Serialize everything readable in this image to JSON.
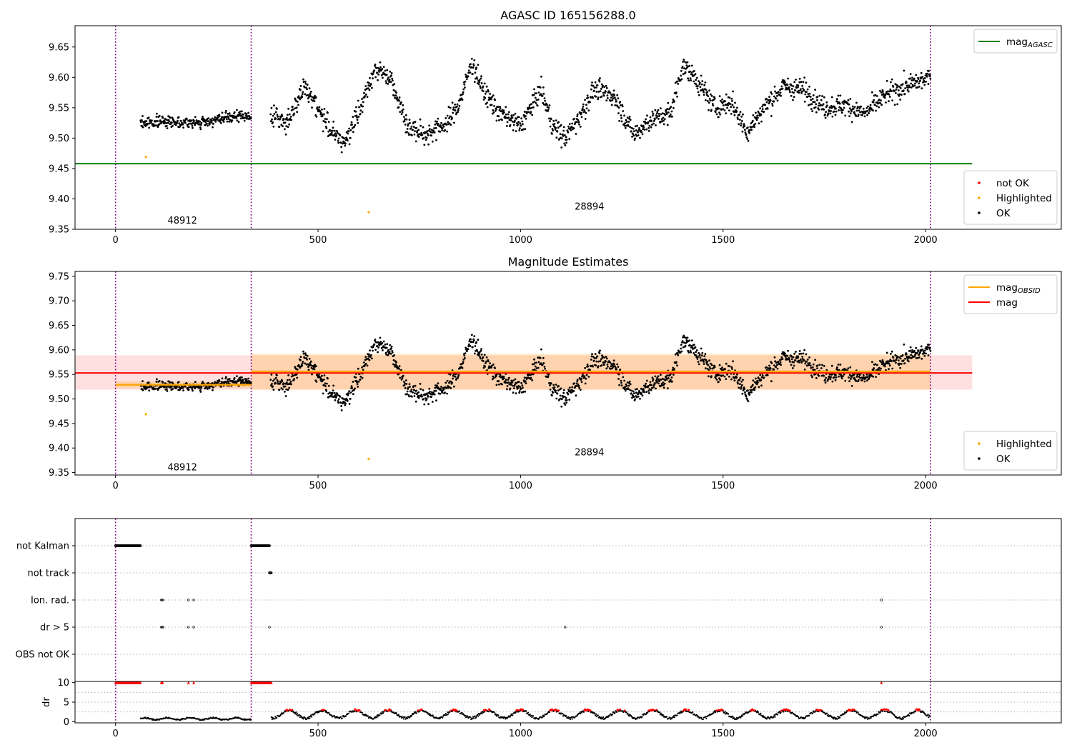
{
  "chart_data": [
    {
      "id": "top",
      "type": "scatter",
      "title": "AGASC ID 165156288.0",
      "xlim": [
        -100,
        2335
      ],
      "ylim": [
        9.35,
        9.685
      ],
      "xticks": [
        0,
        500,
        1000,
        1500,
        2000
      ],
      "yticks": [
        9.35,
        9.4,
        9.45,
        9.5,
        9.55,
        9.6,
        9.65
      ],
      "vlines": [
        0,
        335,
        2012
      ],
      "hline": {
        "name": "mag_AGASC",
        "y": 9.458,
        "x": [
          -100,
          2115
        ],
        "color": "#008000"
      },
      "highlighted": [
        {
          "x": 75,
          "y": 9.469
        },
        {
          "x": 625,
          "y": 9.378
        }
      ],
      "obsid_labels": [
        {
          "text": "48912",
          "x": 165,
          "y": 9.365
        },
        {
          "text": "28894",
          "x": 1170,
          "y": 9.388
        }
      ],
      "legends": [
        {
          "pos": "top-right",
          "entries": [
            {
              "label": "mag",
              "sub": "AGASC",
              "kind": "line",
              "color": "#008000"
            }
          ]
        },
        {
          "pos": "bottom-right",
          "entries": [
            {
              "label": "not OK",
              "kind": "dot",
              "color": "#ff0000"
            },
            {
              "label": "Highlighted",
              "kind": "dot",
              "color": "#ffa500"
            },
            {
              "label": "OK",
              "kind": "dot",
              "color": "#000000"
            }
          ]
        }
      ]
    },
    {
      "id": "mid",
      "type": "scatter",
      "title": "Magnitude Estimates",
      "xlim": [
        -100,
        2335
      ],
      "ylim": [
        9.345,
        9.76
      ],
      "xticks": [
        0,
        500,
        1000,
        1500,
        2000
      ],
      "yticks": [
        9.35,
        9.4,
        9.45,
        9.5,
        9.55,
        9.6,
        9.65,
        9.7,
        9.75
      ],
      "vlines": [
        0,
        335,
        2012
      ],
      "mag": {
        "y": 9.553,
        "band": [
          9.519,
          9.589
        ],
        "x": [
          -100,
          2115
        ],
        "color": "#ff0000"
      },
      "mag_obsid": [
        {
          "x": [
            0,
            335
          ],
          "y": 9.529,
          "band": [
            9.522,
            9.536
          ]
        },
        {
          "x": [
            335,
            2012
          ],
          "y": 9.556,
          "band": [
            9.519,
            9.592
          ]
        }
      ],
      "highlighted": [
        {
          "x": 75,
          "y": 9.469
        },
        {
          "x": 625,
          "y": 9.378
        }
      ],
      "obsid_labels": [
        {
          "text": "48912",
          "x": 165,
          "y": 9.362
        },
        {
          "text": "28894",
          "x": 1170,
          "y": 9.392
        }
      ],
      "legends": [
        {
          "pos": "top-right",
          "entries": [
            {
              "label": "mag",
              "sub": "OBSID",
              "kind": "line",
              "color": "#ffa500"
            },
            {
              "label": "mag",
              "kind": "line",
              "color": "#ff0000"
            }
          ]
        },
        {
          "pos": "bottom-right",
          "entries": [
            {
              "label": "Highlighted",
              "kind": "dot",
              "color": "#ffa500"
            },
            {
              "label": "OK",
              "kind": "dot",
              "color": "#000000"
            }
          ]
        }
      ]
    },
    {
      "id": "flags",
      "type": "scatter",
      "xlim": [
        -100,
        2335
      ],
      "categories": [
        "not Kalman",
        "not track",
        "Ion. rad.",
        "dr > 5",
        "OBS not OK"
      ],
      "vlines": [
        0,
        335,
        2012
      ],
      "ranges": {
        "not Kalman": [
          [
            0,
            62
          ],
          [
            335,
            380
          ]
        ],
        "not track": [
          [
            380,
            385
          ]
        ]
      },
      "points": {
        "Ion. rad.": [
          113,
          115,
          117,
          180,
          193,
          1891
        ],
        "dr > 5": [
          113,
          115,
          117,
          180,
          193,
          380,
          1110,
          1891
        ]
      }
    },
    {
      "id": "dr",
      "type": "scatter",
      "ylabel": "dr",
      "xlim": [
        -100,
        2335
      ],
      "ylim": [
        -0.3,
        10.3
      ],
      "xticks": [
        0,
        500,
        1000,
        1500,
        2000
      ],
      "yticks": [
        0,
        5,
        10
      ],
      "vlines": [
        0,
        335,
        2012
      ],
      "high_dr": [
        [
          0,
          62
        ],
        [
          113,
          117
        ],
        [
          180,
          180
        ],
        [
          193,
          193
        ],
        [
          335,
          385
        ],
        [
          1891,
          1891
        ]
      ]
    }
  ]
}
